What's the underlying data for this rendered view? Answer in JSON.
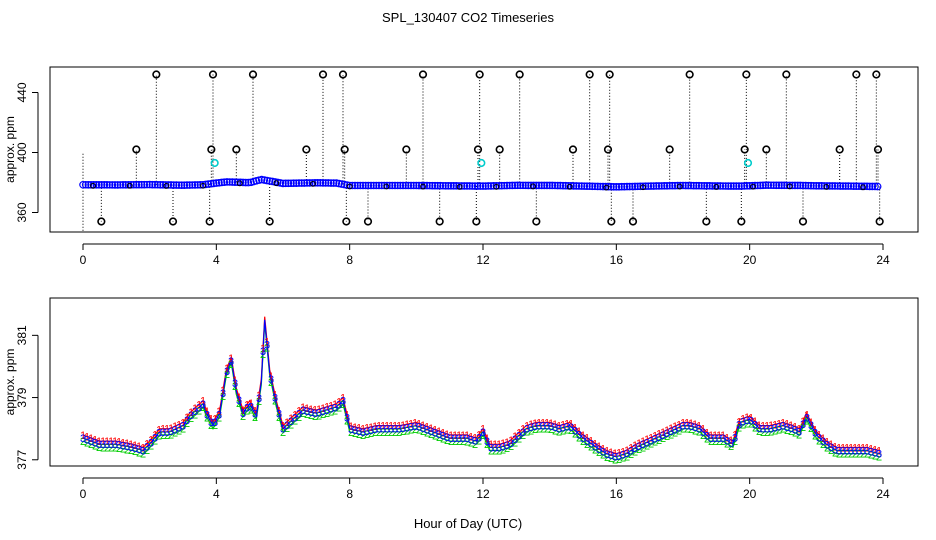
{
  "title": "SPL_130407  CO2 Timeseries",
  "xlabel": "Hour of Day (UTC)",
  "colors": {
    "outliers": "#000000",
    "flagged": "#00cccc",
    "mean": "#0000ff",
    "series1": "#ff0000",
    "series2": "#00cc00",
    "series3": "#0000ff",
    "gaps": "#000000"
  },
  "chart_data": [
    {
      "type": "scatter",
      "name": "full-range",
      "ylabel": "approx. ppm",
      "xlim": [
        0,
        24
      ],
      "ylim": [
        347,
        457
      ],
      "xticks": [
        0,
        4,
        8,
        12,
        16,
        20,
        24
      ],
      "yticks": [
        360,
        400,
        440
      ],
      "baseline": [
        [
          0,
          378.5
        ],
        [
          1,
          378.4
        ],
        [
          2,
          378.6
        ],
        [
          3,
          378.2
        ],
        [
          3.6,
          378.5
        ],
        [
          4,
          379.6
        ],
        [
          4.3,
          380.4
        ],
        [
          4.6,
          380.2
        ],
        [
          5,
          379.9
        ],
        [
          5.35,
          382
        ],
        [
          5.6,
          381
        ],
        [
          6,
          379.4
        ],
        [
          7,
          379.8
        ],
        [
          7.6,
          379.6
        ],
        [
          8,
          378
        ],
        [
          10,
          378
        ],
        [
          12,
          377.6
        ],
        [
          13,
          378.1
        ],
        [
          14.2,
          378
        ],
        [
          15.2,
          377.5
        ],
        [
          16,
          377.1
        ],
        [
          17,
          377.6
        ],
        [
          18,
          378
        ],
        [
          19,
          377.7
        ],
        [
          19.7,
          377.6
        ],
        [
          20.5,
          378.2
        ],
        [
          21.6,
          378
        ],
        [
          22,
          377.8
        ],
        [
          23,
          377.6
        ],
        [
          23.9,
          377.3
        ]
      ],
      "outliers_high": [
        2.2,
        3.9,
        5.1,
        7.2,
        7.8,
        10.2,
        11.9,
        13.1,
        15.2,
        15.8,
        18.2,
        19.9,
        21.1,
        23.2,
        23.8
      ],
      "outliers_mid": [
        1.6,
        3.85,
        4.6,
        6.7,
        7.85,
        9.7,
        11.85,
        12.5,
        14.7,
        15.75,
        17.6,
        19.85,
        20.5,
        22.7,
        23.85
      ],
      "outliers_low": [
        0.55,
        2.7,
        3.8,
        5.6,
        7.9,
        8.55,
        10.7,
        11.8,
        13.6,
        15.85,
        16.5,
        18.7,
        19.75,
        21.6,
        23.9
      ],
      "flagged": [
        [
          3.95,
          393
        ],
        [
          11.95,
          393
        ],
        [
          19.95,
          393
        ]
      ]
    },
    {
      "type": "line",
      "name": "zoomed",
      "ylabel": "approx. ppm",
      "xlim": [
        0,
        24
      ],
      "ylim": [
        376.8,
        382.2
      ],
      "xticks": [
        0,
        4,
        8,
        12,
        16,
        20,
        24
      ],
      "yticks": [
        377,
        379,
        381
      ],
      "series": [
        {
          "name": "1",
          "x": [
            0,
            0.5,
            1,
            1.5,
            1.8,
            2,
            2.3,
            2.6,
            3,
            3.2,
            3.4,
            3.6,
            3.7,
            3.9,
            4.1,
            4.3,
            4.45,
            4.6,
            4.8,
            5,
            5.2,
            5.35,
            5.45,
            5.6,
            5.8,
            6,
            6.3,
            6.6,
            7,
            7.3,
            7.6,
            7.8,
            8,
            8.4,
            8.8,
            9.5,
            10,
            10.5,
            11,
            11.5,
            11.8,
            12,
            12.2,
            12.5,
            12.8,
            13,
            13.3,
            13.6,
            14,
            14.3,
            14.6,
            15,
            15.4,
            15.7,
            16,
            16.3,
            16.6,
            17,
            17.4,
            17.8,
            18,
            18.2,
            18.5,
            18.8,
            19.2,
            19.5,
            19.7,
            20,
            20.3,
            20.6,
            21,
            21.3,
            21.5,
            21.7,
            22,
            22.3,
            22.6,
            23,
            23.5,
            23.9
          ],
          "values": [
            377.8,
            377.6,
            377.6,
            377.5,
            377.4,
            377.6,
            378,
            378,
            378.2,
            378.5,
            378.7,
            378.9,
            378.6,
            378.2,
            378.6,
            379.9,
            380.3,
            379.3,
            378.6,
            378.9,
            378.5,
            379.6,
            381.6,
            379.9,
            378.9,
            378.1,
            378.4,
            378.7,
            378.6,
            378.7,
            378.8,
            379,
            378.1,
            378,
            378.1,
            378.1,
            378.2,
            378,
            377.8,
            377.8,
            377.7,
            378,
            377.5,
            377.5,
            377.6,
            377.8,
            378.1,
            378.2,
            378.2,
            378.1,
            378.2,
            377.8,
            377.5,
            377.3,
            377.2,
            377.3,
            377.5,
            377.7,
            377.9,
            378.1,
            378.2,
            378.2,
            378.1,
            377.8,
            377.8,
            377.6,
            378.3,
            378.4,
            378.1,
            378.1,
            378.2,
            378.1,
            378,
            378.5,
            377.9,
            377.6,
            377.4,
            377.4,
            377.4,
            377.3
          ]
        },
        {
          "name": "2",
          "x": [
            0,
            0.5,
            1,
            1.5,
            1.8,
            2,
            2.3,
            2.6,
            3,
            3.2,
            3.4,
            3.6,
            3.7,
            3.9,
            4.1,
            4.3,
            4.45,
            4.6,
            4.8,
            5,
            5.2,
            5.35,
            5.45,
            5.6,
            5.8,
            6,
            6.3,
            6.6,
            7,
            7.3,
            7.6,
            7.8,
            8,
            8.4,
            8.8,
            9.5,
            10,
            10.5,
            11,
            11.5,
            11.8,
            12,
            12.2,
            12.5,
            12.8,
            13,
            13.3,
            13.6,
            14,
            14.3,
            14.6,
            15,
            15.4,
            15.7,
            16,
            16.3,
            16.6,
            17,
            17.4,
            17.8,
            18,
            18.2,
            18.5,
            18.8,
            19.2,
            19.5,
            19.7,
            20,
            20.3,
            20.6,
            21,
            21.3,
            21.5,
            21.7,
            22,
            22.3,
            22.6,
            23,
            23.5,
            23.9
          ],
          "values": [
            377.6,
            377.4,
            377.4,
            377.3,
            377.2,
            377.4,
            377.8,
            377.8,
            378,
            378.3,
            378.5,
            378.7,
            378.4,
            378,
            378.4,
            379.7,
            380.1,
            379.1,
            378.4,
            378.7,
            378.3,
            379.4,
            381.4,
            379.7,
            378.7,
            377.9,
            378.2,
            378.5,
            378.4,
            378.5,
            378.6,
            378.8,
            377.9,
            377.8,
            377.9,
            377.9,
            378,
            377.8,
            377.6,
            377.6,
            377.5,
            377.8,
            377.3,
            377.3,
            377.4,
            377.6,
            377.9,
            378,
            378,
            377.9,
            378,
            377.6,
            377.3,
            377.1,
            377,
            377.1,
            377.3,
            377.5,
            377.7,
            377.9,
            378,
            378,
            377.9,
            377.6,
            377.6,
            377.4,
            378.1,
            378.2,
            377.9,
            377.9,
            378,
            377.9,
            377.8,
            378.3,
            377.7,
            377.4,
            377.2,
            377.2,
            377.2,
            377.1
          ]
        },
        {
          "name": "3",
          "x": [
            0,
            0.5,
            1,
            1.5,
            1.8,
            2,
            2.3,
            2.6,
            3,
            3.2,
            3.4,
            3.6,
            3.7,
            3.9,
            4.1,
            4.3,
            4.45,
            4.6,
            4.8,
            5,
            5.2,
            5.35,
            5.45,
            5.6,
            5.8,
            6,
            6.3,
            6.6,
            7,
            7.3,
            7.6,
            7.8,
            8,
            8.4,
            8.8,
            9.5,
            10,
            10.5,
            11,
            11.5,
            11.8,
            12,
            12.2,
            12.5,
            12.8,
            13,
            13.3,
            13.6,
            14,
            14.3,
            14.6,
            15,
            15.4,
            15.7,
            16,
            16.3,
            16.6,
            17,
            17.4,
            17.8,
            18,
            18.2,
            18.5,
            18.8,
            19.2,
            19.5,
            19.7,
            20,
            20.3,
            20.6,
            21,
            21.3,
            21.5,
            21.7,
            22,
            22.3,
            22.6,
            23,
            23.5,
            23.9
          ],
          "values": [
            377.7,
            377.5,
            377.5,
            377.4,
            377.3,
            377.5,
            377.9,
            377.9,
            378.1,
            378.4,
            378.6,
            378.8,
            378.5,
            378.1,
            378.5,
            379.8,
            380.2,
            379.2,
            378.5,
            378.8,
            378.4,
            379.5,
            381.5,
            379.8,
            378.8,
            378,
            378.3,
            378.6,
            378.5,
            378.6,
            378.7,
            378.9,
            378,
            377.9,
            378,
            378,
            378.1,
            377.9,
            377.7,
            377.7,
            377.6,
            377.9,
            377.4,
            377.4,
            377.5,
            377.7,
            378,
            378.1,
            378.1,
            378,
            378.1,
            377.7,
            377.4,
            377.2,
            377.1,
            377.2,
            377.4,
            377.6,
            377.8,
            378,
            378.1,
            378.1,
            378,
            377.7,
            377.7,
            377.5,
            378.2,
            378.3,
            378,
            378,
            378.1,
            378,
            377.9,
            378.4,
            377.8,
            377.5,
            377.3,
            377.3,
            377.3,
            377.2
          ]
        }
      ]
    }
  ]
}
